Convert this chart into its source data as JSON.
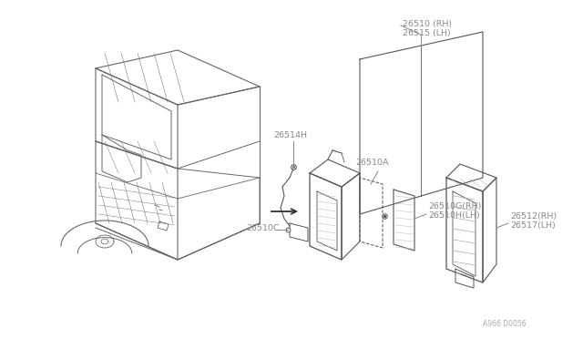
{
  "bg_color": "#ffffff",
  "car_color": "#666666",
  "part_color": "#555555",
  "leader_color": "#888888",
  "text_color": "#888888",
  "watermark": "A966 D0056",
  "labels": {
    "26510_top": "26510 (RH)\n26515 (LH)",
    "26514H": "26514H",
    "26510C": "26510C",
    "26510A": "26510A",
    "26510G": "26510G(RH)\n26510H(LH)",
    "26512": "26512(RH)\n26517(LH)"
  }
}
